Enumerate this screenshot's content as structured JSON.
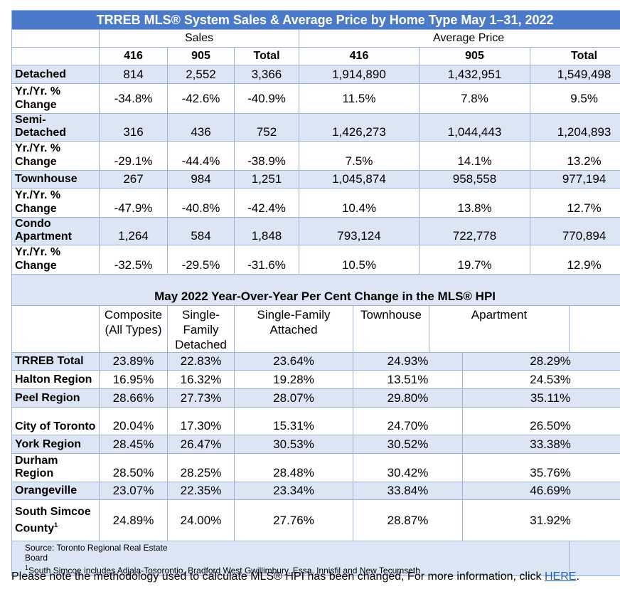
{
  "title": "TRREB MLS® System Sales & Average Price by Home Type May 1–31, 2022",
  "groups": {
    "sales": "Sales",
    "avg_price": "Average Price"
  },
  "cols": [
    "416",
    "905",
    "Total",
    "416",
    "905",
    "Total"
  ],
  "sales_rows": [
    {
      "label": "Detached",
      "values": [
        "814",
        "2,552",
        "3,366",
        "1,914,890",
        "1,432,951",
        "1,549,498"
      ]
    },
    {
      "label": "Yr./Yr. % Change",
      "values": [
        "-34.8%",
        "-42.6%",
        "-40.9%",
        "11.5%",
        "7.8%",
        "9.5%"
      ]
    },
    {
      "label": "Semi-Detached",
      "values": [
        "316",
        "436",
        "752",
        "1,426,273",
        "1,044,443",
        "1,204,893"
      ]
    },
    {
      "label": "Yr./Yr. % Change",
      "values": [
        "-29.1%",
        "-44.4%",
        "-38.9%",
        "7.5%",
        "14.1%",
        "13.2%"
      ]
    },
    {
      "label": "Townhouse",
      "values": [
        "267",
        "984",
        "1,251",
        "1,045,874",
        "958,558",
        "977,194"
      ]
    },
    {
      "label": "Yr./Yr. % Change",
      "values": [
        "-47.9%",
        "-40.8%",
        "-42.4%",
        "10.4%",
        "13.8%",
        "12.7%"
      ]
    },
    {
      "label": "Condo Apartment",
      "values": [
        "1,264",
        "584",
        "1,848",
        "793,124",
        "722,778",
        "770,894"
      ]
    },
    {
      "label": "Yr./Yr. % Change",
      "values": [
        "-32.5%",
        "-29.5%",
        "-31.6%",
        "10.5%",
        "19.7%",
        "12.9%"
      ]
    }
  ],
  "hpi_title": "May 2022 Year-Over-Year Per Cent Change in the MLS® HPI",
  "hpi_cols": [
    "Composite (All Types)",
    "Single-Family Detached",
    "Single-Family Attached",
    "Townhouse",
    "Apartment"
  ],
  "hpi_rows": [
    {
      "label": "TRREB Total",
      "values": [
        "23.89%",
        "22.83%",
        "23.64%",
        "24.93%",
        "28.29%"
      ]
    },
    {
      "label": "Halton Region",
      "values": [
        "16.95%",
        "16.32%",
        "19.28%",
        "13.51%",
        "24.53%"
      ]
    },
    {
      "label": "Peel Region",
      "values": [
        "28.66%",
        "27.73%",
        "28.07%",
        "29.80%",
        "35.11%"
      ]
    },
    {
      "label": "City of Toronto",
      "values": [
        "20.04%",
        "17.30%",
        "15.31%",
        "24.70%",
        "26.50%"
      ]
    },
    {
      "label": "York Region",
      "values": [
        "28.45%",
        "26.47%",
        "30.53%",
        "30.52%",
        "33.38%"
      ]
    },
    {
      "label": "Durham Region",
      "values": [
        "28.50%",
        "28.25%",
        "28.48%",
        "30.42%",
        "35.76%"
      ]
    },
    {
      "label": "Orangeville",
      "values": [
        "23.07%",
        "22.35%",
        "23.34%",
        "33.84%",
        "46.69%"
      ]
    },
    {
      "label": "South Simcoe County",
      "sup": "1",
      "values": [
        "24.89%",
        "24.00%",
        "27.76%",
        "28.87%",
        "31.92%"
      ]
    }
  ],
  "source_line1": "Source: Toronto Regional Real Estate",
  "source_line2": "Board",
  "footnote_sup": "1",
  "footnote_text": "South Simcoe includes Adjala-Tosorontio, Bradford West Gwillimbury, Essa, Innisfil and New Tecumseth",
  "note_text": "Please note the methodology used to calculate MLS® HPI has been changed, For more information, click ",
  "note_link": "HERE",
  "note_end": ".",
  "colors": {
    "header_blue": "#4a7ac9",
    "band_blue": "#dbe5f4",
    "border": "#9db3d4",
    "link": "#1f5fc4"
  }
}
